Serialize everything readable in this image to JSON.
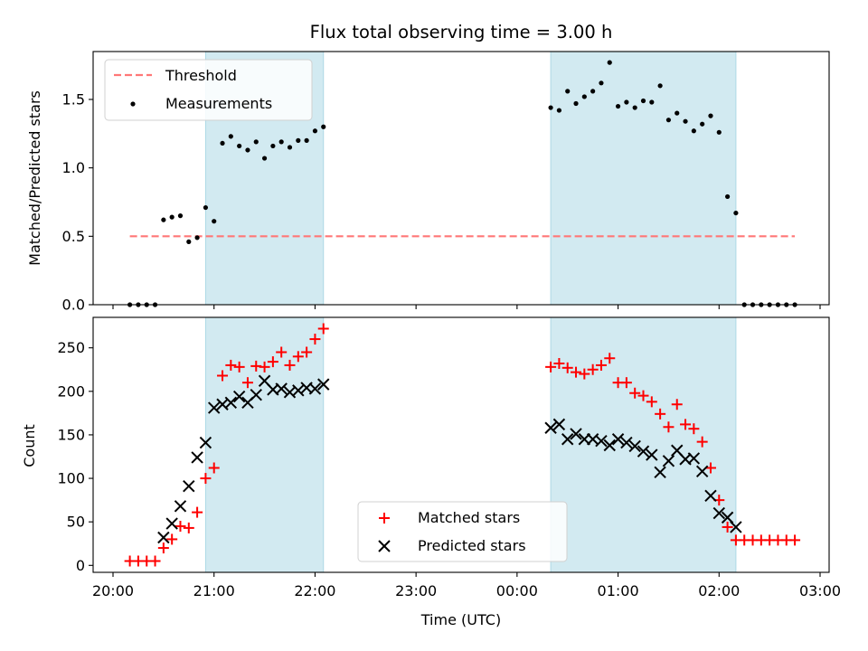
{
  "chart_data": [
    {
      "type": "scatter",
      "title": "Flux total observing time = 3.00 h",
      "xlabel": "",
      "ylabel": "Matched/Predicted stars",
      "xlim": [
        "20:00",
        "03:00"
      ],
      "ylim": [
        0,
        1.85
      ],
      "yticks": [
        "0.0",
        "0.5",
        "1.0",
        "1.5"
      ],
      "shaded_intervals": [
        [
          "20:55",
          "22:05"
        ],
        [
          "00:20",
          "02:10"
        ]
      ],
      "threshold": {
        "name": "Threshold",
        "value": 0.5,
        "x_range": [
          "20:10",
          "02:45"
        ],
        "color": "#ff7777"
      },
      "series": [
        {
          "name": "Measurements",
          "marker": "dot",
          "color": "#000000",
          "x": [
            "20:10",
            "20:15",
            "20:20",
            "20:25",
            "20:30",
            "20:35",
            "20:40",
            "20:45",
            "20:50",
            "20:55",
            "21:00",
            "21:05",
            "21:10",
            "21:15",
            "21:20",
            "21:25",
            "21:30",
            "21:35",
            "21:40",
            "21:45",
            "21:50",
            "21:55",
            "22:00",
            "22:05",
            "00:20",
            "00:25",
            "00:30",
            "00:35",
            "00:40",
            "00:45",
            "00:50",
            "00:55",
            "01:00",
            "01:05",
            "01:10",
            "01:15",
            "01:20",
            "01:25",
            "01:30",
            "01:35",
            "01:40",
            "01:45",
            "01:50",
            "01:55",
            "02:00",
            "02:05",
            "02:10",
            "02:15",
            "02:20",
            "02:25",
            "02:30",
            "02:35",
            "02:40",
            "02:45"
          ],
          "y": [
            0,
            0,
            0,
            0,
            0.62,
            0.64,
            0.65,
            0.46,
            0.49,
            0.71,
            0.61,
            1.18,
            1.23,
            1.16,
            1.13,
            1.19,
            1.07,
            1.16,
            1.19,
            1.15,
            1.2,
            1.2,
            1.27,
            1.3,
            1.44,
            1.42,
            1.56,
            1.47,
            1.52,
            1.56,
            1.62,
            1.77,
            1.45,
            1.48,
            1.44,
            1.49,
            1.48,
            1.6,
            1.35,
            1.4,
            1.34,
            1.27,
            1.32,
            1.38,
            1.26,
            0.79,
            0.67,
            0,
            0,
            0,
            0,
            0,
            0,
            0
          ]
        }
      ]
    },
    {
      "type": "scatter",
      "xlabel": "Time (UTC)",
      "ylabel": "Count",
      "xlim": [
        "20:00",
        "03:00"
      ],
      "ylim": [
        -8,
        285
      ],
      "xticks": [
        "20:00",
        "21:00",
        "22:00",
        "23:00",
        "00:00",
        "01:00",
        "02:00",
        "03:00"
      ],
      "yticks": [
        "0",
        "50",
        "100",
        "150",
        "200",
        "250"
      ],
      "shaded_intervals": [
        [
          "20:55",
          "22:05"
        ],
        [
          "00:20",
          "02:10"
        ]
      ],
      "series": [
        {
          "name": "Matched stars",
          "marker": "plus",
          "color": "#ff0000",
          "x": [
            "20:10",
            "20:15",
            "20:20",
            "20:25",
            "20:30",
            "20:35",
            "20:40",
            "20:45",
            "20:50",
            "20:55",
            "21:00",
            "21:05",
            "21:10",
            "21:15",
            "21:20",
            "21:25",
            "21:30",
            "21:35",
            "21:40",
            "21:45",
            "21:50",
            "21:55",
            "22:00",
            "22:05",
            "00:20",
            "00:25",
            "00:30",
            "00:35",
            "00:40",
            "00:45",
            "00:50",
            "00:55",
            "01:00",
            "01:05",
            "01:10",
            "01:15",
            "01:20",
            "01:25",
            "01:30",
            "01:35",
            "01:40",
            "01:45",
            "01:50",
            "01:55",
            "02:00",
            "02:05",
            "02:10",
            "02:15",
            "02:20",
            "02:25",
            "02:30",
            "02:35",
            "02:40",
            "02:45"
          ],
          "y": [
            5,
            5,
            5,
            5,
            20,
            30,
            45,
            43,
            61,
            100,
            112,
            218,
            230,
            228,
            210,
            229,
            228,
            234,
            245,
            230,
            240,
            245,
            260,
            272,
            228,
            232,
            227,
            222,
            220,
            225,
            230,
            238,
            210,
            210,
            198,
            195,
            188,
            174,
            159,
            185,
            162,
            157,
            142,
            112,
            75,
            44,
            29,
            29,
            29,
            29,
            29,
            29,
            29,
            29
          ]
        },
        {
          "name": "Predicted stars",
          "marker": "x",
          "color": "#000000",
          "x": [
            "20:30",
            "20:35",
            "20:40",
            "20:45",
            "20:50",
            "20:55",
            "21:00",
            "21:05",
            "21:10",
            "21:15",
            "21:20",
            "21:25",
            "21:30",
            "21:35",
            "21:40",
            "21:45",
            "21:50",
            "21:55",
            "22:00",
            "22:05",
            "00:20",
            "00:25",
            "00:30",
            "00:35",
            "00:40",
            "00:45",
            "00:50",
            "00:55",
            "01:00",
            "01:05",
            "01:10",
            "01:15",
            "01:20",
            "01:25",
            "01:30",
            "01:35",
            "01:40",
            "01:45",
            "01:50",
            "01:55",
            "02:00",
            "02:05",
            "02:10"
          ],
          "y": [
            32,
            48,
            68,
            91,
            124,
            141,
            181,
            185,
            187,
            194,
            187,
            196,
            212,
            202,
            203,
            199,
            201,
            204,
            203,
            208,
            158,
            162,
            145,
            151,
            145,
            145,
            143,
            138,
            145,
            141,
            137,
            131,
            127,
            107,
            120,
            132,
            122,
            123,
            108,
            80,
            60,
            55,
            44
          ]
        }
      ]
    }
  ],
  "legend_top": {
    "threshold_label": "Threshold",
    "measurements_label": "Measurements"
  },
  "legend_bottom": {
    "matched_label": "Matched stars",
    "predicted_label": "Predicted stars"
  },
  "colors": {
    "shade": "#add8e6",
    "threshold": "#ff7777",
    "matched": "#ff0000",
    "predicted": "#000000"
  }
}
